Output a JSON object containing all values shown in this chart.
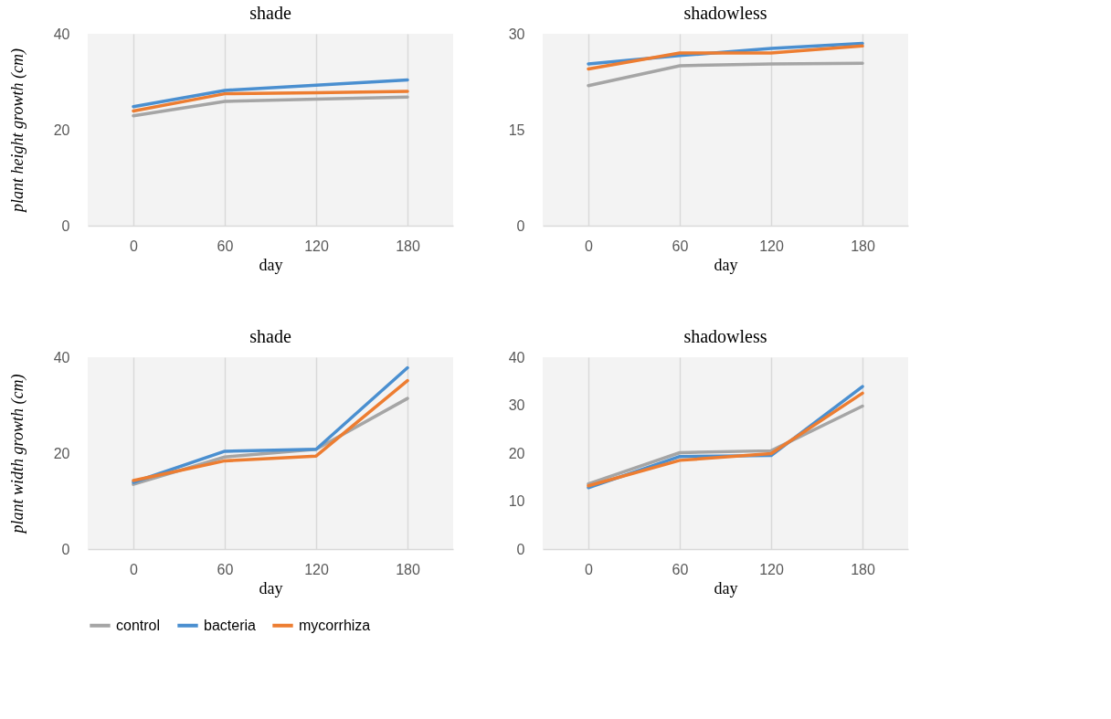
{
  "chart_data": [
    {
      "type": "line",
      "title": "shade",
      "xlabel": "day",
      "ylabel": "plant height growth (cm)",
      "categories": [
        "0",
        "60",
        "120",
        "180"
      ],
      "ylim": [
        0,
        40
      ],
      "yticks": [
        0,
        20,
        40
      ],
      "grid": "x",
      "legend": "bottom",
      "line_style": "solid",
      "series": [
        {
          "name": "control",
          "color": "#a5a5a5",
          "values": [
            22.9,
            25.9,
            26.4,
            26.8
          ]
        },
        {
          "name": "bacteria",
          "color": "#4a8fd0",
          "values": [
            24.8,
            28.2,
            29.3,
            30.4
          ]
        },
        {
          "name": "mycorrhiza",
          "color": "#ed7d31",
          "values": [
            23.9,
            27.5,
            27.7,
            28.0
          ]
        }
      ]
    },
    {
      "type": "line",
      "title": "shadowless",
      "xlabel": "day",
      "categories": [
        "0",
        "60",
        "120",
        "180"
      ],
      "ylim": [
        0,
        30
      ],
      "yticks": [
        0,
        15,
        30
      ],
      "grid": "x",
      "legend": "bottom",
      "line_style": "solid",
      "series": [
        {
          "name": "control",
          "color": "#a5a5a5",
          "values": [
            21.9,
            25.0,
            25.3,
            25.4
          ]
        },
        {
          "name": "bacteria",
          "color": "#4a8fd0",
          "values": [
            25.3,
            26.6,
            27.7,
            28.5
          ]
        },
        {
          "name": "mycorrhiza",
          "color": "#ed7d31",
          "values": [
            24.5,
            27.0,
            27.0,
            28.1
          ]
        }
      ]
    },
    {
      "type": "line",
      "title": "shade",
      "xlabel": "day",
      "ylabel": "plant width growth (cm)",
      "categories": [
        "0",
        "60",
        "120",
        "180"
      ],
      "ylim": [
        0,
        40
      ],
      "yticks": [
        0,
        20,
        40
      ],
      "grid": "x",
      "legend": "bottom",
      "line_style": "solid",
      "series": [
        {
          "name": "control",
          "color": "#a5a5a5",
          "values": [
            13.5,
            19.2,
            20.8,
            31.4
          ]
        },
        {
          "name": "bacteria",
          "color": "#4a8fd0",
          "values": [
            13.9,
            20.4,
            20.8,
            37.8
          ]
        },
        {
          "name": "mycorrhiza",
          "color": "#ed7d31",
          "values": [
            14.3,
            18.4,
            19.4,
            35.1
          ]
        }
      ]
    },
    {
      "type": "line",
      "title": "shadowless",
      "xlabel": "day",
      "categories": [
        "0",
        "60",
        "120",
        "180"
      ],
      "ylim": [
        0,
        40
      ],
      "yticks": [
        0,
        10,
        20,
        30,
        40
      ],
      "grid": "x",
      "legend": "bottom",
      "line_style": "solid",
      "series": [
        {
          "name": "control",
          "color": "#a5a5a5",
          "values": [
            13.6,
            20.1,
            20.5,
            29.8
          ]
        },
        {
          "name": "bacteria",
          "color": "#4a8fd0",
          "values": [
            12.8,
            19.3,
            19.5,
            33.9
          ]
        },
        {
          "name": "mycorrhiza",
          "color": "#ed7d31",
          "values": [
            13.2,
            18.5,
            19.9,
            32.5
          ]
        }
      ]
    }
  ]
}
